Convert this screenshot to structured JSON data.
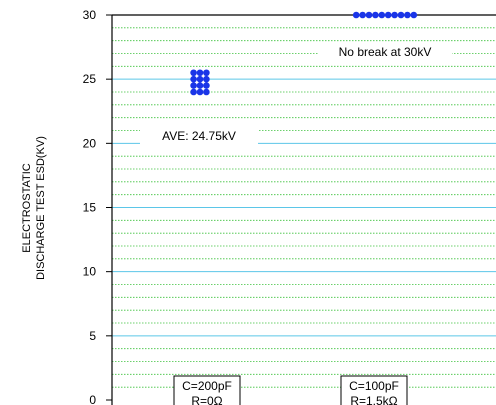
{
  "chart_data": {
    "type": "scatter",
    "ylabel_lines": [
      "ELECTROSTATIC",
      "DISCHARGE TEST ESD(KV)"
    ],
    "ylim": [
      0,
      30
    ],
    "yticks": [
      0,
      5,
      10,
      15,
      20,
      25,
      30
    ],
    "grid": true,
    "categories": [
      {
        "label": "C=200pF",
        "sublabel": "R=0Ω"
      },
      {
        "label": "C=100pF",
        "sublabel": "R=1.5kΩ"
      }
    ],
    "points": [
      {
        "category": 0,
        "values": [
          25.5,
          25.5,
          25.5,
          25.0,
          25.0,
          25.0,
          24.5,
          24.5,
          24.5,
          24.0,
          24.0,
          24.0
        ]
      },
      {
        "category": 1,
        "values": [
          30,
          30,
          30,
          30,
          30,
          30,
          30,
          30,
          30,
          30
        ]
      }
    ],
    "annotations": [
      {
        "text": "No break at 30kV"
      },
      {
        "text": "AVE: 24.75kV"
      }
    ],
    "colors": {
      "points": "#1a35e8",
      "grid_minor": "#3cc13c",
      "grid_major": "#5bc6e8",
      "axis": "#000000"
    }
  }
}
